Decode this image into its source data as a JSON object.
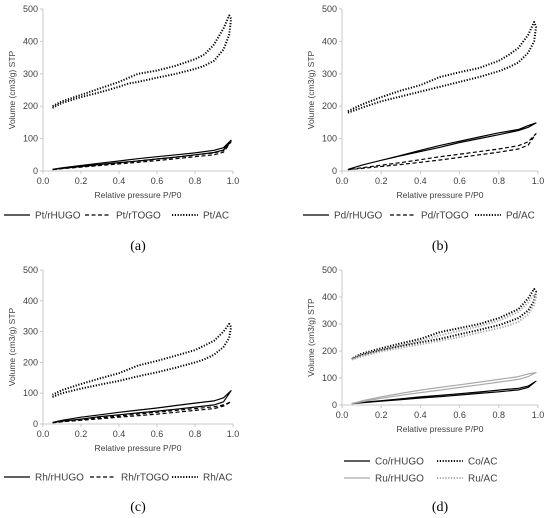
{
  "chart_data": [
    {
      "type": "line",
      "panel_label": "(a)",
      "xlabel": "Relative pressure P/P0",
      "ylabel": "Volume (cm3/g) STP",
      "xlim": [
        0.0,
        1.0
      ],
      "ylim": [
        0,
        500
      ],
      "xticks": [
        "0.0",
        "0.2",
        "0.4",
        "0.6",
        "0.8",
        "1.0"
      ],
      "yticks": [
        "0",
        "100",
        "200",
        "300",
        "400",
        "500"
      ],
      "grid": false,
      "legend_position": "bottom",
      "series": [
        {
          "name": "Pt/rHUGO",
          "style": "solid",
          "color": "#000000",
          "x": [
            0.05,
            0.1,
            0.2,
            0.3,
            0.4,
            0.5,
            0.6,
            0.7,
            0.8,
            0.9,
            0.95,
            0.99,
            0.95,
            0.9,
            0.8,
            0.7,
            0.6,
            0.5,
            0.4,
            0.3,
            0.2,
            0.1,
            0.05
          ],
          "y": [
            5,
            8,
            14,
            20,
            26,
            31,
            37,
            43,
            50,
            57,
            65,
            95,
            72,
            64,
            56,
            50,
            44,
            38,
            31,
            24,
            17,
            10,
            5
          ]
        },
        {
          "name": "Pt/rTOGO",
          "style": "dashed",
          "color": "#000000",
          "x": [
            0.05,
            0.1,
            0.2,
            0.3,
            0.4,
            0.5,
            0.6,
            0.7,
            0.8,
            0.9,
            0.95,
            0.99,
            0.95,
            0.9,
            0.8,
            0.7,
            0.6,
            0.5,
            0.4,
            0.3,
            0.2,
            0.1,
            0.05
          ],
          "y": [
            4,
            7,
            12,
            17,
            22,
            27,
            32,
            38,
            44,
            50,
            58,
            90,
            63,
            56,
            49,
            43,
            37,
            31,
            25,
            19,
            13,
            8,
            4
          ]
        },
        {
          "name": "Pt/AC",
          "style": "dotted",
          "color": "#000000",
          "x": [
            0.05,
            0.1,
            0.2,
            0.3,
            0.4,
            0.45,
            0.5,
            0.6,
            0.7,
            0.8,
            0.85,
            0.9,
            0.95,
            0.98,
            0.99,
            0.98,
            0.95,
            0.9,
            0.85,
            0.8,
            0.7,
            0.6,
            0.5,
            0.4,
            0.3,
            0.2,
            0.1,
            0.05
          ],
          "y": [
            195,
            210,
            228,
            243,
            260,
            270,
            275,
            288,
            300,
            315,
            325,
            340,
            375,
            420,
            470,
            480,
            440,
            390,
            360,
            345,
            325,
            310,
            300,
            275,
            255,
            235,
            215,
            200
          ]
        }
      ]
    },
    {
      "type": "line",
      "panel_label": "(b)",
      "xlabel": "Relative pressure P/P0",
      "ylabel": "Volume (cm3/g) STP",
      "xlim": [
        0.0,
        1.0
      ],
      "ylim": [
        0,
        500
      ],
      "xticks": [
        "0.0",
        "0.2",
        "0.4",
        "0.6",
        "0.8",
        "1.0"
      ],
      "yticks": [
        "0",
        "100",
        "200",
        "300",
        "400",
        "500"
      ],
      "grid": false,
      "legend_position": "bottom",
      "series": [
        {
          "name": "Pd/rHUGO",
          "style": "solid",
          "color": "#000000",
          "x": [
            0.03,
            0.1,
            0.2,
            0.3,
            0.4,
            0.5,
            0.6,
            0.7,
            0.8,
            0.9,
            0.95,
            0.99,
            0.95,
            0.9,
            0.8,
            0.7,
            0.6,
            0.5,
            0.4,
            0.3,
            0.2,
            0.1,
            0.03
          ],
          "y": [
            5,
            18,
            33,
            47,
            60,
            73,
            88,
            100,
            112,
            125,
            135,
            148,
            140,
            128,
            118,
            105,
            92,
            79,
            64,
            48,
            33,
            18,
            5
          ]
        },
        {
          "name": "Pd/rTOGO",
          "style": "dashed",
          "color": "#000000",
          "x": [
            0.03,
            0.1,
            0.2,
            0.3,
            0.4,
            0.5,
            0.6,
            0.7,
            0.8,
            0.9,
            0.95,
            0.99,
            0.95,
            0.9,
            0.8,
            0.7,
            0.6,
            0.5,
            0.4,
            0.3,
            0.2,
            0.1,
            0.03
          ],
          "y": [
            4,
            8,
            14,
            20,
            27,
            34,
            42,
            50,
            58,
            68,
            80,
            115,
            90,
            78,
            68,
            60,
            52,
            44,
            35,
            26,
            18,
            10,
            4
          ]
        },
        {
          "name": "Pd/AC",
          "style": "dotted",
          "color": "#000000",
          "x": [
            0.03,
            0.1,
            0.2,
            0.3,
            0.4,
            0.5,
            0.6,
            0.7,
            0.8,
            0.85,
            0.9,
            0.95,
            0.98,
            0.99,
            0.98,
            0.95,
            0.9,
            0.85,
            0.8,
            0.7,
            0.6,
            0.5,
            0.4,
            0.3,
            0.2,
            0.1,
            0.03
          ],
          "y": [
            180,
            195,
            215,
            230,
            245,
            260,
            275,
            290,
            308,
            320,
            335,
            365,
            400,
            445,
            460,
            420,
            380,
            358,
            340,
            318,
            305,
            290,
            265,
            248,
            228,
            205,
            185
          ]
        }
      ]
    },
    {
      "type": "line",
      "panel_label": "(c)",
      "xlabel": "Relative pressure P/P0",
      "ylabel": "Volume (cm3/g) STP",
      "xlim": [
        0.0,
        1.0
      ],
      "ylim": [
        0,
        500
      ],
      "xticks": [
        "0.0",
        "0.2",
        "0.4",
        "0.6",
        "0.8",
        "1.0"
      ],
      "yticks": [
        "0",
        "100",
        "200",
        "300",
        "400",
        "500"
      ],
      "grid": false,
      "legend_position": "bottom",
      "series": [
        {
          "name": "Rh/rHUGO",
          "style": "solid",
          "color": "#000000",
          "x": [
            0.05,
            0.1,
            0.2,
            0.3,
            0.4,
            0.5,
            0.6,
            0.7,
            0.8,
            0.9,
            0.95,
            0.99,
            0.95,
            0.9,
            0.8,
            0.7,
            0.6,
            0.5,
            0.4,
            0.3,
            0.2,
            0.1,
            0.05
          ],
          "y": [
            5,
            9,
            16,
            24,
            30,
            36,
            42,
            48,
            55,
            62,
            72,
            108,
            85,
            75,
            68,
            60,
            52,
            45,
            38,
            30,
            22,
            12,
            5
          ]
        },
        {
          "name": "Rh/rTOGO",
          "style": "dashed",
          "color": "#000000",
          "x": [
            0.05,
            0.1,
            0.2,
            0.3,
            0.4,
            0.5,
            0.6,
            0.7,
            0.8,
            0.9,
            0.95,
            0.99,
            0.95,
            0.9,
            0.8,
            0.7,
            0.6,
            0.5,
            0.4,
            0.3,
            0.2,
            0.1,
            0.05
          ],
          "y": [
            4,
            7,
            12,
            17,
            22,
            27,
            32,
            38,
            44,
            50,
            58,
            72,
            62,
            56,
            50,
            44,
            38,
            32,
            26,
            20,
            14,
            8,
            4
          ]
        },
        {
          "name": "Rh/AC",
          "style": "dotted",
          "color": "#000000",
          "x": [
            0.05,
            0.1,
            0.2,
            0.3,
            0.4,
            0.5,
            0.6,
            0.7,
            0.8,
            0.85,
            0.9,
            0.95,
            0.98,
            0.99,
            0.98,
            0.95,
            0.9,
            0.85,
            0.8,
            0.7,
            0.6,
            0.5,
            0.4,
            0.3,
            0.2,
            0.1,
            0.05
          ],
          "y": [
            88,
            100,
            115,
            128,
            140,
            155,
            168,
            183,
            200,
            210,
            225,
            250,
            280,
            315,
            325,
            300,
            270,
            255,
            240,
            222,
            205,
            190,
            165,
            148,
            130,
            110,
            95
          ]
        }
      ]
    },
    {
      "type": "line",
      "panel_label": "(d)",
      "xlabel": "Relative pressure P/P0",
      "ylabel": "Volume (cm3/g) STP",
      "xlim": [
        0.0,
        1.0
      ],
      "ylim": [
        0,
        500
      ],
      "xticks": [
        "0.0",
        "0.2",
        "0.4",
        "0.6",
        "0.8",
        "1.0"
      ],
      "yticks": [
        "0",
        "100",
        "200",
        "300",
        "400",
        "500"
      ],
      "grid": false,
      "legend_position": "bottom",
      "series": [
        {
          "name": "Co/rHUGO",
          "style": "solid",
          "color": "#000000",
          "x": [
            0.05,
            0.1,
            0.2,
            0.3,
            0.4,
            0.5,
            0.6,
            0.7,
            0.8,
            0.9,
            0.95,
            0.99,
            0.95,
            0.9,
            0.8,
            0.7,
            0.6,
            0.5,
            0.4,
            0.3,
            0.2,
            0.1,
            0.05
          ],
          "y": [
            5,
            8,
            14,
            20,
            26,
            31,
            37,
            43,
            49,
            56,
            65,
            88,
            70,
            62,
            55,
            48,
            42,
            36,
            30,
            23,
            16,
            10,
            5
          ]
        },
        {
          "name": "Co/AC",
          "style": "dotted",
          "color": "#000000",
          "x": [
            0.05,
            0.1,
            0.2,
            0.3,
            0.4,
            0.5,
            0.6,
            0.7,
            0.8,
            0.85,
            0.9,
            0.95,
            0.98,
            0.99,
            0.98,
            0.95,
            0.9,
            0.85,
            0.8,
            0.7,
            0.6,
            0.5,
            0.4,
            0.3,
            0.2,
            0.1,
            0.05
          ],
          "y": [
            170,
            185,
            203,
            218,
            232,
            245,
            262,
            278,
            296,
            308,
            322,
            350,
            385,
            420,
            430,
            395,
            355,
            338,
            322,
            300,
            285,
            270,
            245,
            228,
            210,
            190,
            172
          ]
        },
        {
          "name": "Ru/rHUGO",
          "style": "solid",
          "color": "#aaaaaa",
          "x": [
            0.05,
            0.1,
            0.2,
            0.3,
            0.4,
            0.5,
            0.6,
            0.7,
            0.8,
            0.9,
            0.95,
            0.99,
            0.95,
            0.9,
            0.8,
            0.7,
            0.6,
            0.5,
            0.4,
            0.3,
            0.2,
            0.1,
            0.05
          ],
          "y": [
            5,
            12,
            25,
            36,
            46,
            55,
            65,
            75,
            85,
            95,
            105,
            120,
            115,
            105,
            95,
            85,
            75,
            65,
            55,
            43,
            30,
            15,
            5
          ]
        },
        {
          "name": "Ru/AC",
          "style": "dotted",
          "color": "#aaaaaa",
          "x": [
            0.05,
            0.1,
            0.2,
            0.3,
            0.4,
            0.5,
            0.6,
            0.7,
            0.8,
            0.85,
            0.9,
            0.95,
            0.98,
            0.99,
            0.98,
            0.95,
            0.9,
            0.85,
            0.8,
            0.7,
            0.6,
            0.5,
            0.4,
            0.3,
            0.2,
            0.1,
            0.05
          ],
          "y": [
            168,
            180,
            198,
            212,
            225,
            238,
            252,
            268,
            285,
            295,
            308,
            335,
            370,
            400,
            410,
            380,
            345,
            328,
            312,
            292,
            275,
            258,
            238,
            220,
            203,
            185,
            170
          ]
        }
      ]
    }
  ]
}
